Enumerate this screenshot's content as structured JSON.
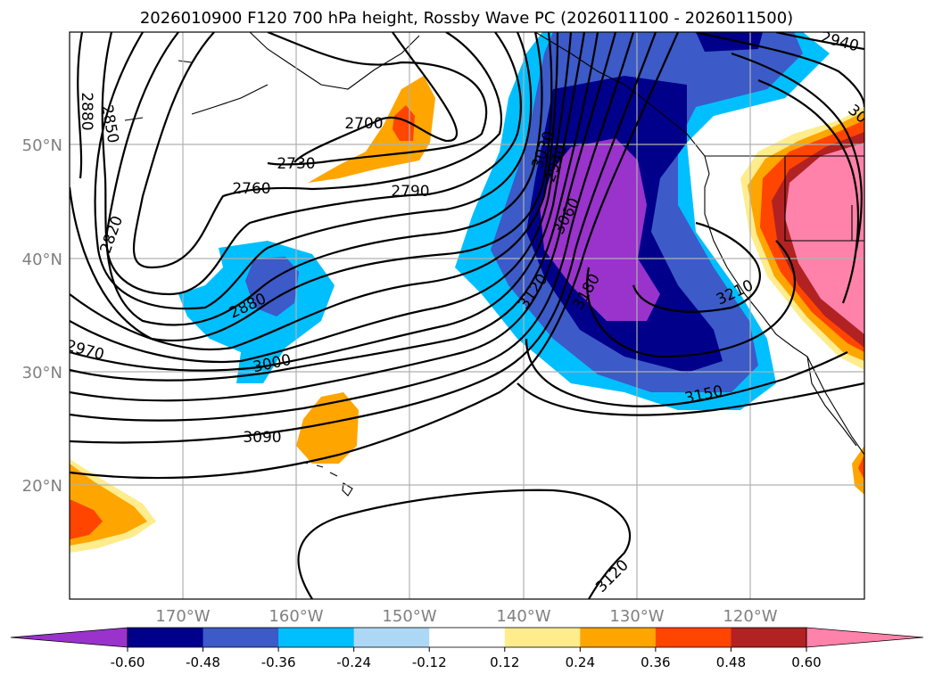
{
  "title": "2026010900 F120 700 hPa height, Rossby Wave PC (2026011100 - 2026011500)",
  "map": {
    "lat_ticks": [
      {
        "label": "50°N",
        "value": 50
      },
      {
        "label": "40°N",
        "value": 40
      },
      {
        "label": "30°N",
        "value": 30
      },
      {
        "label": "20°N",
        "value": 20
      }
    ],
    "lon_ticks": [
      {
        "label": "170°W",
        "value": -170
      },
      {
        "label": "160°W",
        "value": -160
      },
      {
        "label": "150°W",
        "value": -150
      },
      {
        "label": "140°W",
        "value": -140
      },
      {
        "label": "130°W",
        "value": -130
      },
      {
        "label": "120°W",
        "value": -120
      }
    ],
    "contour_labels": [
      "2880",
      "2850",
      "2700",
      "2730",
      "2760",
      "2790",
      "2820",
      "2880",
      "2970",
      "3000",
      "3090",
      "3030",
      "2940",
      "3060",
      "3120",
      "3180",
      "3210",
      "3150",
      "3120",
      "2940",
      "30"
    ],
    "gridlines": true
  },
  "colorbar": {
    "ticks": [
      "-0.60",
      "-0.48",
      "-0.36",
      "-0.24",
      "-0.12",
      "0.12",
      "0.24",
      "0.36",
      "0.48",
      "0.60"
    ],
    "colors": [
      "#9933cc",
      "#00008b",
      "#3c5ac8",
      "#00bfff",
      "#add8f5",
      "#ffffff",
      "#ffec8c",
      "#ffa500",
      "#ff4500",
      "#b22222",
      "#ff82aa"
    ]
  }
}
